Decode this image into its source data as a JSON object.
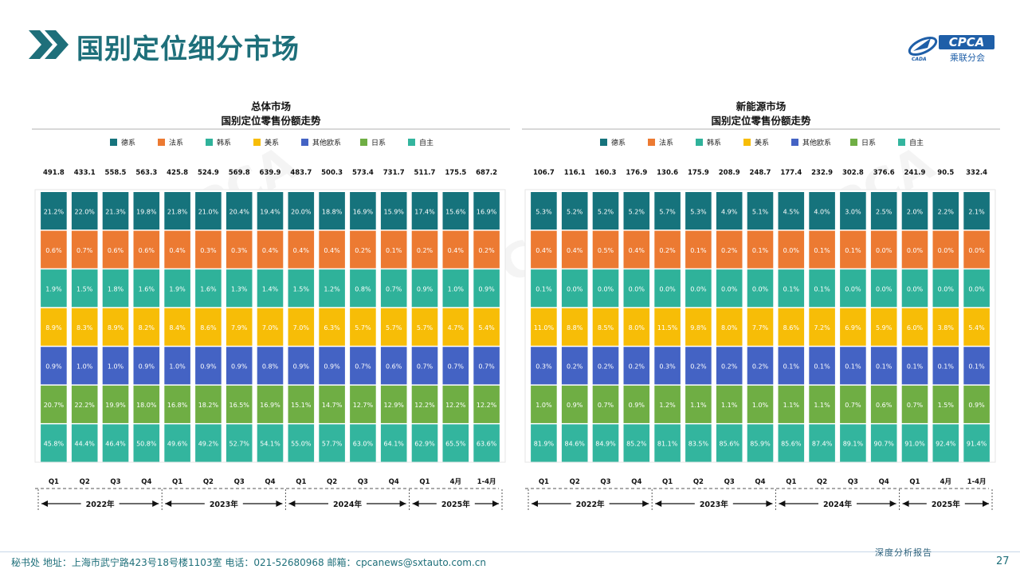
{
  "page": {
    "title": "国别定位细分市场",
    "logo_text": "CPCA",
    "logo_subtext": "乘联分会",
    "footer": "秘书处   地址：上海市武宁路423号18号楼1103室   电话：021-52680968   邮箱：cpcanews@sxtauto.com.cn",
    "report_label": "深度分析报告",
    "page_number": "27",
    "accent_color": "#1e6f7a"
  },
  "legend": [
    "德系",
    "法系",
    "韩系",
    "美系",
    "其他欧系",
    "日系",
    "自主"
  ],
  "colors": {
    "德系": "#16737c",
    "法系": "#ec7a32",
    "韩系": "#2fb29a",
    "美系": "#f7bd07",
    "其他欧系": "#4463c4",
    "日系": "#6fae44",
    "自主": "#33b59e"
  },
  "chart_data": [
    {
      "type": "bar",
      "stacked": "100%",
      "title": "总体市场",
      "subtitle": "国别定位零售份额走势",
      "categories": [
        "Q1",
        "Q2",
        "Q3",
        "Q4",
        "Q1",
        "Q2",
        "Q3",
        "Q4",
        "Q1",
        "Q2",
        "Q3",
        "Q4",
        "Q1",
        "4月",
        "1-4月"
      ],
      "totals": [
        "491.8",
        "433.1",
        "558.5",
        "563.3",
        "425.8",
        "524.9",
        "569.8",
        "639.9",
        "483.7",
        "500.3",
        "573.4",
        "731.7",
        "511.7",
        "175.5",
        "687.2"
      ],
      "year_groups": [
        "2022年",
        "2023年",
        "2024年",
        "2025年"
      ],
      "series": [
        {
          "name": "德系",
          "values": [
            21.2,
            22.0,
            21.3,
            19.8,
            21.8,
            21.0,
            20.4,
            19.4,
            20.0,
            18.8,
            16.9,
            15.9,
            17.4,
            15.6,
            16.9
          ]
        },
        {
          "name": "法系",
          "values": [
            0.6,
            0.7,
            0.6,
            0.6,
            0.4,
            0.3,
            0.3,
            0.4,
            0.4,
            0.4,
            0.2,
            0.1,
            0.2,
            0.4,
            0.2
          ]
        },
        {
          "name": "韩系",
          "values": [
            1.9,
            1.5,
            1.8,
            1.6,
            1.9,
            1.6,
            1.3,
            1.4,
            1.5,
            1.2,
            0.8,
            0.7,
            0.9,
            1.0,
            0.9
          ]
        },
        {
          "name": "美系",
          "values": [
            8.9,
            8.3,
            8.9,
            8.2,
            8.4,
            8.6,
            7.9,
            7.0,
            7.0,
            6.3,
            5.7,
            5.7,
            5.7,
            4.7,
            5.4
          ]
        },
        {
          "name": "其他欧系",
          "values": [
            0.9,
            1.0,
            1.0,
            0.9,
            1.0,
            0.9,
            0.9,
            0.8,
            0.9,
            0.9,
            0.7,
            0.6,
            0.7,
            0.7,
            0.7
          ]
        },
        {
          "name": "日系",
          "values": [
            20.7,
            22.2,
            19.9,
            18.0,
            16.8,
            18.2,
            16.5,
            16.9,
            15.1,
            14.7,
            12.7,
            12.9,
            12.2,
            12.2,
            12.2
          ]
        },
        {
          "name": "自主",
          "values": [
            45.8,
            44.4,
            46.4,
            50.8,
            49.6,
            49.2,
            52.7,
            54.1,
            55.0,
            57.7,
            63.0,
            64.1,
            62.9,
            65.5,
            63.6
          ]
        }
      ]
    },
    {
      "type": "bar",
      "stacked": "100%",
      "title": "新能源市场",
      "subtitle": "国别定位零售份额走势",
      "categories": [
        "Q1",
        "Q2",
        "Q3",
        "Q4",
        "Q1",
        "Q2",
        "Q3",
        "Q4",
        "Q1",
        "Q2",
        "Q3",
        "Q4",
        "Q1",
        "4月",
        "1-4月"
      ],
      "totals": [
        "106.7",
        "116.1",
        "160.3",
        "176.9",
        "130.6",
        "175.9",
        "208.9",
        "248.7",
        "177.4",
        "232.9",
        "302.8",
        "376.6",
        "241.9",
        "90.5",
        "332.4"
      ],
      "year_groups": [
        "2022年",
        "2023年",
        "2024年",
        "2025年"
      ],
      "series": [
        {
          "name": "德系",
          "values": [
            5.3,
            5.2,
            5.2,
            5.2,
            5.7,
            5.3,
            4.9,
            5.1,
            4.5,
            4.0,
            3.0,
            2.5,
            2.0,
            2.2,
            2.1
          ]
        },
        {
          "name": "法系",
          "values": [
            0.4,
            0.4,
            0.5,
            0.4,
            0.2,
            0.1,
            0.2,
            0.1,
            0.0,
            0.1,
            0.1,
            0.0,
            0.0,
            0.0,
            0.0
          ]
        },
        {
          "name": "韩系",
          "values": [
            0.1,
            0.0,
            0.0,
            0.0,
            0.0,
            0.0,
            0.0,
            0.0,
            0.1,
            0.1,
            0.0,
            0.0,
            0.0,
            0.0,
            0.0
          ]
        },
        {
          "name": "美系",
          "values": [
            11.0,
            8.8,
            8.5,
            8.0,
            11.5,
            9.8,
            8.0,
            7.7,
            8.6,
            7.2,
            6.9,
            5.9,
            6.0,
            3.8,
            5.4
          ]
        },
        {
          "name": "其他欧系",
          "values": [
            0.3,
            0.2,
            0.2,
            0.2,
            0.3,
            0.2,
            0.2,
            0.2,
            0.1,
            0.1,
            0.1,
            0.1,
            0.1,
            0.1,
            0.1
          ]
        },
        {
          "name": "日系",
          "values": [
            1.0,
            0.9,
            0.7,
            0.9,
            1.2,
            1.1,
            1.1,
            1.0,
            1.1,
            1.1,
            0.7,
            0.6,
            0.7,
            1.5,
            0.9
          ]
        },
        {
          "name": "自主",
          "values": [
            81.9,
            84.6,
            84.9,
            85.2,
            81.1,
            83.5,
            85.6,
            85.9,
            85.6,
            87.4,
            89.1,
            90.7,
            91.0,
            92.4,
            91.4
          ]
        }
      ]
    }
  ]
}
